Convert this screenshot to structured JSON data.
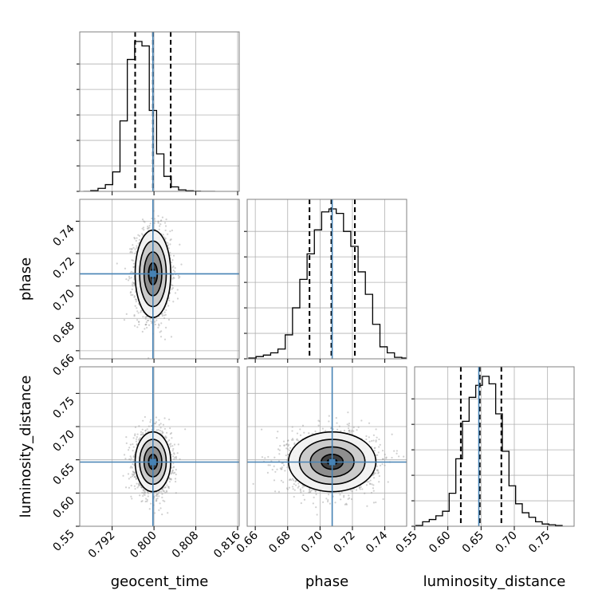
{
  "chart_data": {
    "type": "corner",
    "parameters": [
      "geocent_time",
      "phase",
      "luminosity_distance"
    ],
    "truths": {
      "geocent_time": 0.7998,
      "phase": 0.7075,
      "luminosity_distance": 0.6466
    },
    "quantiles": {
      "geocent_time": [
        0.7964,
        0.7998,
        0.8032
      ],
      "phase": [
        0.6935,
        0.707,
        0.7215
      ],
      "luminosity_distance": [
        0.6195,
        0.648,
        0.6805
      ]
    },
    "ranges": {
      "geocent_time": [
        0.7858,
        0.8163
      ],
      "phase": [
        0.655,
        0.7535
      ],
      "luminosity_distance": [
        0.55,
        0.79
      ]
    },
    "ticks": {
      "geocent_time": [
        "0.792",
        "0.800",
        "0.808",
        "0.816"
      ],
      "phase": [
        "0.66",
        "0.68",
        "0.70",
        "0.72",
        "0.74"
      ],
      "luminosity_distance": [
        "0.55",
        "0.60",
        "0.65",
        "0.70",
        "0.75"
      ]
    },
    "histograms": {
      "geocent_time": {
        "edges": [
          0.7865,
          0.7879,
          0.7893,
          0.7907,
          0.7921,
          0.7935,
          0.7949,
          0.7963,
          0.7977,
          0.7991,
          0.8005,
          0.8019,
          0.8033,
          0.8047,
          0.8061,
          0.8075,
          0.8089,
          0.8103,
          0.8117
        ],
        "counts": [
          0,
          0.005,
          0.02,
          0.045,
          0.13,
          0.47,
          0.88,
          1.0,
          0.97,
          0.54,
          0.25,
          0.1,
          0.03,
          0.01,
          0.004,
          0.001,
          0,
          0
        ]
      },
      "phase": {
        "edges": [
          0.656,
          0.6605,
          0.665,
          0.6695,
          0.674,
          0.6785,
          0.683,
          0.6875,
          0.692,
          0.6965,
          0.701,
          0.7055,
          0.71,
          0.7145,
          0.719,
          0.7235,
          0.728,
          0.7325,
          0.737,
          0.7415,
          0.746,
          0.7505,
          0.7535
        ],
        "counts": [
          0.005,
          0.015,
          0.025,
          0.04,
          0.065,
          0.16,
          0.34,
          0.53,
          0.7,
          0.86,
          0.98,
          1.0,
          0.97,
          0.85,
          0.75,
          0.58,
          0.43,
          0.23,
          0.08,
          0.04,
          0.01,
          0.005
        ]
      },
      "luminosity_distance": {
        "edges": [
          0.552,
          0.562,
          0.572,
          0.582,
          0.592,
          0.602,
          0.612,
          0.622,
          0.632,
          0.642,
          0.652,
          0.662,
          0.672,
          0.682,
          0.692,
          0.702,
          0.712,
          0.722,
          0.732,
          0.742,
          0.752,
          0.762,
          0.772
        ],
        "counts": [
          0.005,
          0.03,
          0.045,
          0.07,
          0.1,
          0.22,
          0.45,
          0.7,
          0.86,
          0.94,
          1.0,
          0.95,
          0.75,
          0.5,
          0.27,
          0.15,
          0.09,
          0.06,
          0.03,
          0.015,
          0.01,
          0.005
        ]
      }
    },
    "pairs": [
      {
        "x": "geocent_time",
        "y": "phase",
        "center": [
          0.7998,
          0.7075
        ],
        "sigma": [
          0.0017,
          0.0135
        ],
        "corr": 0
      },
      {
        "x": "geocent_time",
        "y": "luminosity_distance",
        "center": [
          0.7998,
          0.647
        ],
        "sigma": [
          0.0017,
          0.0225
        ],
        "corr": 0
      },
      {
        "x": "phase",
        "y": "luminosity_distance",
        "center": [
          0.7075,
          0.647
        ],
        "sigma": [
          0.0135,
          0.0225
        ],
        "corr": 0
      }
    ],
    "contour_levels_sigma": [
      0.5,
      1.0,
      1.5,
      2.0
    ],
    "grid": true,
    "colors": {
      "truth": "#4682b4",
      "line": "#000000",
      "scatter": "#9a9a9a",
      "grid": "#b0b0b0"
    }
  }
}
